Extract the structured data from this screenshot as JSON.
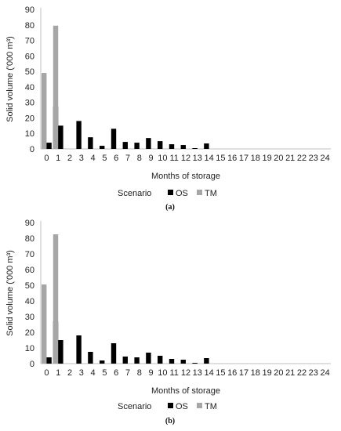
{
  "chart_data": [
    {
      "type": "bar",
      "panel_label": "(a)",
      "xlabel": "Months of storage",
      "ylabel": "Solid volume ('000 m³)",
      "ylim": [
        0,
        90
      ],
      "yticks": [
        "0",
        "10",
        "20",
        "30",
        "40",
        "50",
        "60",
        "70",
        "80",
        "90"
      ],
      "grid": false,
      "legend_position": "bottom",
      "legend_title": "Scenario",
      "categories": [
        "0",
        "1",
        "2",
        "3",
        "4",
        "5",
        "6",
        "7",
        "8",
        "9",
        "10",
        "11",
        "12",
        "13",
        "14",
        "15",
        "16",
        "17",
        "18",
        "19",
        "20",
        "21",
        "22",
        "23",
        "24"
      ],
      "series": [
        {
          "name": "OS",
          "color": "#000000",
          "values": [
            4,
            27.5,
            15,
            18,
            7.5,
            2,
            13,
            4.5,
            4,
            7,
            5,
            3,
            2.5,
            0.5,
            3.5,
            0,
            0,
            0,
            0,
            0,
            0,
            0,
            0,
            0,
            0
          ]
        },
        {
          "name": "TM",
          "color": "#a6a6a6",
          "values": [
            49,
            79.5,
            0,
            0,
            0,
            0,
            0,
            0,
            0,
            0,
            0,
            0,
            0,
            0,
            0,
            0,
            0,
            0,
            0,
            0,
            0,
            0,
            0,
            0,
            0
          ]
        }
      ]
    },
    {
      "type": "bar",
      "panel_label": "(b)",
      "xlabel": "Months of storage",
      "ylabel": "Solid volume ('000 m³)",
      "ylim": [
        0,
        90
      ],
      "yticks": [
        "0",
        "10",
        "20",
        "30",
        "40",
        "50",
        "60",
        "70",
        "80",
        "90"
      ],
      "grid": false,
      "legend_position": "bottom",
      "legend_title": "Scenario",
      "categories": [
        "0",
        "1",
        "2",
        "3",
        "4",
        "5",
        "6",
        "7",
        "8",
        "9",
        "10",
        "11",
        "12",
        "13",
        "14",
        "15",
        "16",
        "17",
        "18",
        "19",
        "20",
        "21",
        "22",
        "23",
        "24"
      ],
      "series": [
        {
          "name": "OS",
          "color": "#000000",
          "values": [
            4,
            27,
            15,
            18,
            7.5,
            2,
            13,
            4.5,
            4,
            7,
            5,
            3,
            2.5,
            0.5,
            3.5,
            0,
            0,
            0,
            0,
            0,
            0,
            0,
            0,
            0,
            0
          ]
        },
        {
          "name": "TM",
          "color": "#a6a6a6",
          "values": [
            50.5,
            82.5,
            0,
            0,
            0,
            0,
            0,
            0,
            0,
            0,
            0,
            0,
            0,
            0,
            0,
            0,
            0,
            0,
            0,
            0,
            0,
            0,
            0,
            0,
            0
          ]
        }
      ]
    }
  ]
}
